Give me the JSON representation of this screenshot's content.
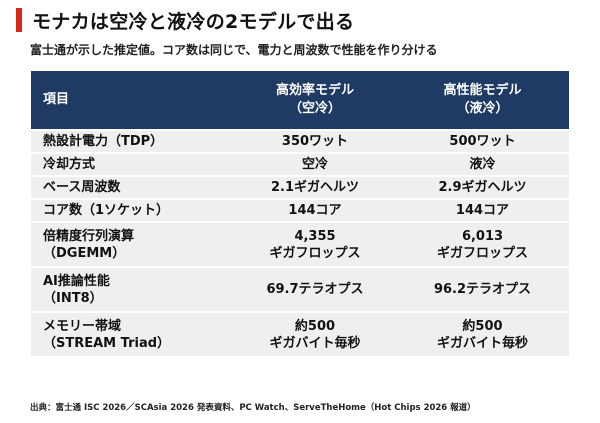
{
  "title": "モナカは空冷と液冷の2モデルで出る",
  "subtitle": "富士通が示した推定値。コア数は同じで、電力と周波数で性能を作り分ける",
  "table": {
    "headers": {
      "item": "項目",
      "air": "高効率モデル\n（空冷）",
      "liquid": "高性能モデル\n（液冷）"
    },
    "rows": [
      {
        "label": "熱設計電力（TDP）",
        "air": "350ワット",
        "liquid": "500ワット"
      },
      {
        "label": "冷却方式",
        "air": "空冷",
        "liquid": "液冷"
      },
      {
        "label": "ベース周波数",
        "air": "2.1ギガヘルツ",
        "liquid": "2.9ギガヘルツ"
      },
      {
        "label": "コア数（1ソケット）",
        "air": "144コア",
        "liquid": "144コア"
      },
      {
        "label": "倍精度行列演算\n（DGEMM）",
        "air": "4,355\nギガフロップス",
        "liquid": "6,013\nギガフロップス"
      },
      {
        "label": "AI推論性能\n（INT8）",
        "air": "69.7テラオプス",
        "liquid": "96.2テラオプス"
      },
      {
        "label": "メモリー帯域\n（STREAM Triad）",
        "air": "約500\nギガバイト毎秒",
        "liquid": "約500\nギガバイト毎秒"
      }
    ]
  },
  "source": "出典：富士通 ISC 2026／SCAsia 2026 発表資料、PC Watch、ServeTheHome（Hot Chips 2026 報道）",
  "colors": {
    "accent": "#d62a1f",
    "header_bg": "#1f3a63",
    "row_bg": "#efefef"
  }
}
